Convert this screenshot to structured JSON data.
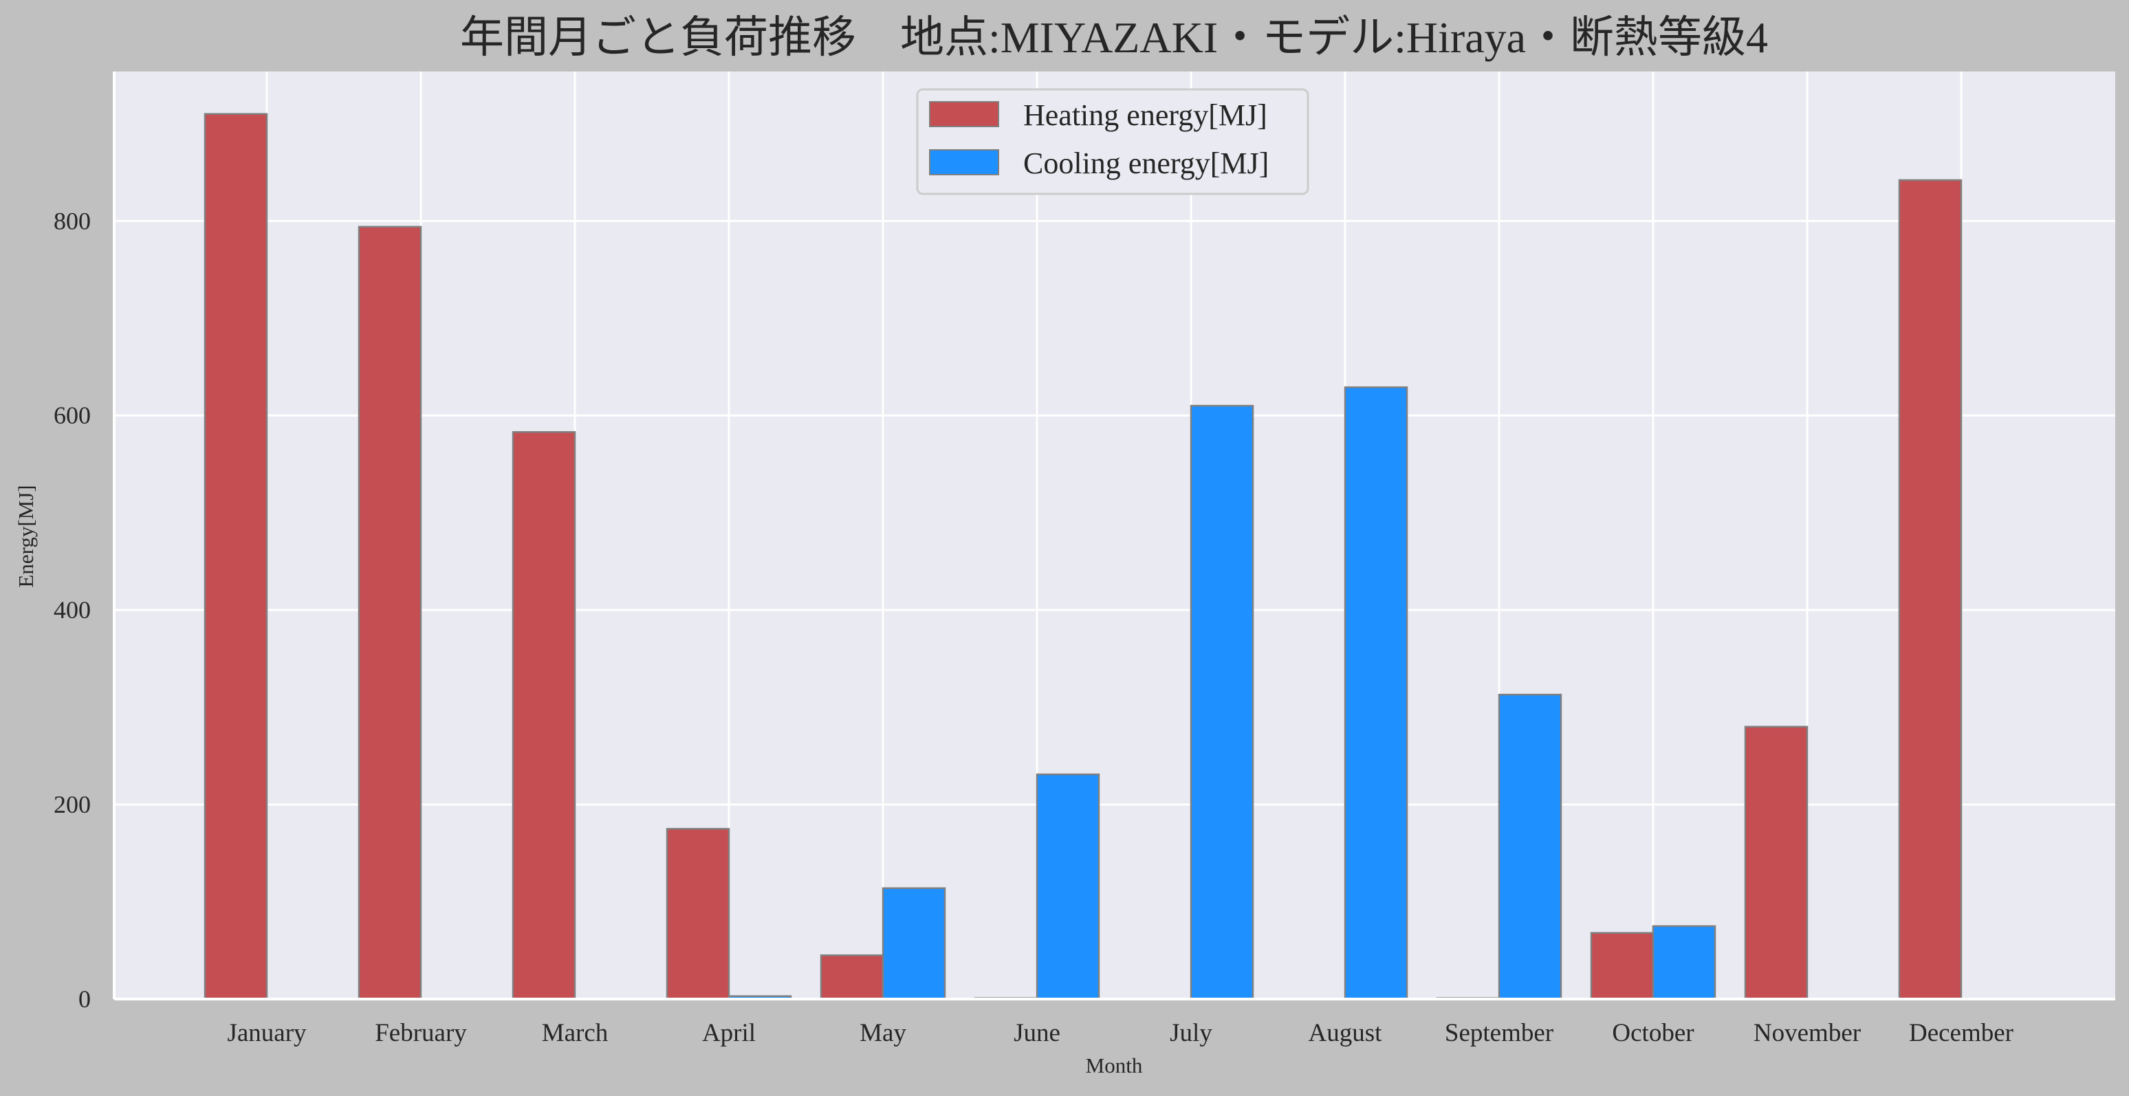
{
  "chart_data": {
    "type": "bar",
    "title": "年間月ごと負荷推移　地点:MIYAZAKI・モデル:Hiraya・断熱等級4",
    "xlabel": "Month",
    "ylabel": "Energy[MJ]",
    "categories": [
      "January",
      "February",
      "March",
      "April",
      "May",
      "June",
      "July",
      "August",
      "September",
      "October",
      "November",
      "December"
    ],
    "series": [
      {
        "name": "Heating energy[MJ]",
        "color": "#c44e52",
        "values": [
          910,
          794,
          583,
          175,
          45,
          1,
          0,
          0,
          1,
          68,
          280,
          842
        ]
      },
      {
        "name": "Cooling energy[MJ]",
        "color": "#1e90ff",
        "values": [
          0,
          0,
          0,
          3,
          114,
          231,
          610,
          629,
          313,
          75,
          0,
          0
        ]
      }
    ],
    "yticks": [
      0,
      200,
      400,
      600,
      800
    ],
    "ylim": [
      0,
      955
    ],
    "grid": true,
    "legend_position": "top-center",
    "colors": {
      "page_background": "#c0c0c0",
      "plot_background": "#eaeaf2",
      "grid": "#ffffff",
      "bar_edge": "#808080",
      "text": "#262626"
    }
  }
}
